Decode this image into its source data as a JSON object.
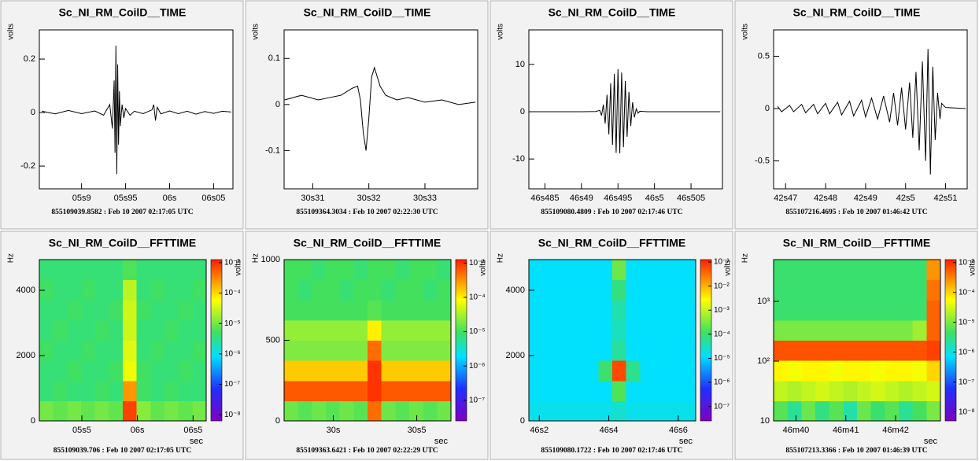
{
  "chart_data": [
    {
      "type": "line",
      "title": "Sc_NI_RM_CoilD__TIME",
      "ylabel": "volts",
      "footer": "855109039.8582 : Feb 10 2007 02:17:05 UTC",
      "color": "#000000",
      "x": [
        5.855,
        5.87,
        5.885,
        5.9,
        5.915,
        5.925,
        5.932,
        5.935,
        5.937,
        5.938,
        5.939,
        5.94,
        5.941,
        5.942,
        5.943,
        5.944,
        5.946,
        5.948,
        5.95,
        5.955,
        5.96,
        5.97,
        5.98,
        5.982,
        5.984,
        5.986,
        5.99,
        6.0,
        6.01,
        6.02,
        6.03,
        6.04,
        6.05,
        6.06,
        6.07
      ],
      "values": [
        0.005,
        -0.005,
        0.008,
        -0.004,
        0.006,
        -0.01,
        0.03,
        -0.06,
        0.12,
        -0.15,
        0.25,
        -0.23,
        0.18,
        -0.12,
        0.08,
        -0.05,
        0.03,
        -0.02,
        0.015,
        -0.01,
        0.005,
        -0.004,
        0.01,
        0.03,
        -0.03,
        0.02,
        -0.005,
        0.006,
        -0.004,
        0.005,
        -0.006,
        0.004,
        -0.003,
        0.005,
        0.002
      ],
      "xlim": [
        5.852,
        6.072
      ],
      "xticks": [
        {
          "value": 5.9,
          "label": "05s9"
        },
        {
          "value": 5.95,
          "label": "05s95"
        },
        {
          "value": 6.0,
          "label": "06s"
        },
        {
          "value": 6.05,
          "label": "06s05"
        }
      ],
      "ylim": [
        -0.285,
        0.309
      ],
      "yticks": [
        -0.2,
        0,
        0.2
      ]
    },
    {
      "type": "line",
      "title": "Sc_NI_RM_CoilD__TIME",
      "ylabel": "volts",
      "footer": "855109364.3034 : Feb 10 2007 02:22:30 UTC",
      "color": "#000000",
      "x": [
        30.305,
        30.308,
        30.311,
        30.313,
        30.315,
        30.317,
        30.318,
        30.3185,
        30.319,
        30.3195,
        30.32,
        30.3205,
        30.321,
        30.3215,
        30.322,
        30.323,
        30.325,
        30.327,
        30.33,
        30.333,
        30.336,
        30.339
      ],
      "values": [
        0.01,
        0.02,
        0.01,
        0.015,
        0.02,
        0.035,
        0.04,
        0.01,
        -0.06,
        -0.1,
        -0.03,
        0.06,
        0.08,
        0.06,
        0.04,
        0.02,
        0.01,
        0.015,
        0.005,
        0.01,
        0.0,
        0.005
      ],
      "xlim": [
        30.3049,
        30.3394
      ],
      "xticks": [
        {
          "value": 30.31,
          "label": "30s31"
        },
        {
          "value": 30.32,
          "label": "30s32"
        },
        {
          "value": 30.33,
          "label": "30s33"
        }
      ],
      "ylim": [
        -0.183,
        0.162
      ],
      "yticks": [
        -0.1,
        0,
        0.1
      ]
    },
    {
      "type": "line",
      "title": "Sc_NI_RM_CoilD__TIME",
      "ylabel": "volts",
      "footer": "855109080.4809 : Feb 10 2007 02:17:46 UTC",
      "color": "#000000",
      "x": [
        46.483,
        46.49,
        46.492,
        46.4925,
        46.49275,
        46.493,
        46.49325,
        46.4935,
        46.49375,
        46.494,
        46.49425,
        46.4945,
        46.49475,
        46.495,
        46.49525,
        46.4955,
        46.49575,
        46.496,
        46.49625,
        46.4965,
        46.49675,
        46.497,
        46.49725,
        46.4975,
        46.49775,
        46.498,
        46.499,
        46.509
      ],
      "values": [
        0,
        0,
        0.05,
        0.3,
        -0.8,
        1.5,
        -2.5,
        3.6,
        -4.8,
        6,
        -7,
        8,
        -8.7,
        9,
        -8.8,
        8.3,
        -7.5,
        6.5,
        -5.3,
        4.2,
        -3,
        2,
        -1.2,
        0.6,
        -0.3,
        0.1,
        0,
        0
      ],
      "xlim": [
        46.4828,
        46.5093
      ],
      "xticks": [
        {
          "value": 46.485,
          "label": "46s485"
        },
        {
          "value": 46.49,
          "label": "46s49"
        },
        {
          "value": 46.495,
          "label": "46s495"
        },
        {
          "value": 46.5,
          "label": "46s5"
        },
        {
          "value": 46.505,
          "label": "46s505"
        }
      ],
      "ylim": [
        -16.3,
        17.3
      ],
      "yticks": [
        -10,
        0,
        10
      ]
    },
    {
      "type": "line",
      "title": "Sc_NI_RM_CoilD__TIME",
      "ylabel": "volts",
      "footer": "855107216.4695 : Feb 10 2007 01:46:42 UTC",
      "color": "#000000",
      "x": [
        42.468,
        42.469,
        42.471,
        42.472,
        42.474,
        42.475,
        42.477,
        42.478,
        42.48,
        42.481,
        42.483,
        42.484,
        42.486,
        42.487,
        42.489,
        42.49,
        42.4915,
        42.493,
        42.4945,
        42.496,
        42.497,
        42.498,
        42.499,
        42.5,
        42.501,
        42.5018,
        42.5026,
        42.5034,
        42.5042,
        42.505,
        42.5056,
        42.5062,
        42.5068,
        42.5074,
        42.508,
        42.5086,
        42.509,
        42.51,
        42.515
      ],
      "values": [
        0.02,
        -0.03,
        0.03,
        -0.03,
        0.04,
        -0.04,
        0.04,
        -0.05,
        0.05,
        -0.05,
        0.06,
        -0.06,
        0.07,
        -0.07,
        0.08,
        -0.08,
        0.1,
        -0.1,
        0.12,
        -0.13,
        0.15,
        -0.16,
        0.2,
        -0.2,
        0.25,
        -0.28,
        0.35,
        -0.4,
        0.45,
        -0.5,
        0.57,
        -0.63,
        0.4,
        -0.3,
        0.15,
        -0.1,
        0.05,
        0.01,
        0
      ],
      "xlim": [
        42.467,
        42.5154
      ],
      "xticks": [
        {
          "value": 42.47,
          "label": "42s47"
        },
        {
          "value": 42.48,
          "label": "42s48"
        },
        {
          "value": 42.49,
          "label": "42s49"
        },
        {
          "value": 42.5,
          "label": "42s5"
        },
        {
          "value": 42.51,
          "label": "42s51"
        }
      ],
      "ylim": [
        -0.767,
        0.752
      ],
      "yticks": [
        -0.5,
        0,
        0.5
      ]
    },
    {
      "type": "heatmap",
      "title": "Sc_NI_RM_CoilD__FFTTIME",
      "ylabel": "Hz",
      "xlabel": "sec",
      "zlabel": "volts",
      "footer": "855109039.706 : Feb 10 2007 02:17:05 UTC",
      "xlim": [
        5.118,
        6.618
      ],
      "xticks": [
        {
          "value": 5.5,
          "label": "05s5"
        },
        {
          "value": 6.0,
          "label": "06s"
        },
        {
          "value": 6.5,
          "label": "06s5"
        }
      ],
      "ylim": [
        0,
        4940
      ],
      "yticks": [
        0,
        2000,
        4000
      ],
      "zlim": [
        -8.2,
        -2.9
      ],
      "zticks": [
        {
          "value": -3,
          "label": "10⁻³"
        },
        {
          "value": -4,
          "label": "10⁻⁴"
        },
        {
          "value": -5,
          "label": "10⁻⁵"
        },
        {
          "value": -6,
          "label": "10⁻⁶"
        },
        {
          "value": -7,
          "label": "10⁻⁷"
        },
        {
          "value": -8,
          "label": "10⁻⁸"
        }
      ],
      "z": [
        [
          -5.0,
          -5.1,
          -5.0,
          -5.1,
          -5.0,
          -5.1,
          -3.1,
          -4.9,
          -5.1,
          -5.0,
          -5.1,
          -5.0
        ],
        [
          -5.4,
          -5.3,
          -5.4,
          -5.4,
          -5.3,
          -5.4,
          -3.6,
          -5.3,
          -5.4,
          -5.3,
          -5.4,
          -5.4
        ],
        [
          -5.4,
          -5.4,
          -5.3,
          -5.4,
          -5.4,
          -5.3,
          -4.3,
          -5.3,
          -5.4,
          -5.4,
          -5.3,
          -5.4
        ],
        [
          -5.3,
          -5.4,
          -5.4,
          -5.3,
          -5.4,
          -5.4,
          -4.4,
          -5.4,
          -5.3,
          -5.4,
          -5.4,
          -5.3
        ],
        [
          -5.4,
          -5.3,
          -5.4,
          -5.4,
          -5.3,
          -5.4,
          -4.5,
          -5.4,
          -5.4,
          -5.3,
          -5.4,
          -5.4
        ],
        [
          -5.4,
          -5.4,
          -5.3,
          -5.4,
          -5.4,
          -5.3,
          -4.5,
          -5.3,
          -5.4,
          -5.4,
          -5.3,
          -5.4
        ],
        [
          -5.3,
          -5.4,
          -5.4,
          -5.3,
          -5.4,
          -5.4,
          -4.6,
          -5.4,
          -5.3,
          -5.4,
          -5.4,
          -5.3
        ],
        [
          -5.4,
          -5.4,
          -5.4,
          -5.4,
          -5.4,
          -5.4,
          -5.2,
          -5.4,
          -5.4,
          -5.4,
          -5.4,
          -5.4
        ]
      ]
    },
    {
      "type": "heatmap",
      "title": "Sc_NI_RM_CoilD__FFTTIME",
      "ylabel": "Hz",
      "xlabel": "sec",
      "zlabel": "volts",
      "footer": "855109363.6421 : Feb 10 2007 02:22:29 UTC",
      "xlim": [
        29.705,
        30.705
      ],
      "xticks": [
        {
          "value": 30,
          "label": "30s"
        },
        {
          "value": 30.5,
          "label": "30s5"
        }
      ],
      "ylim": [
        0,
        1000
      ],
      "yticks": [
        0,
        500,
        1000
      ],
      "zlim": [
        -7.6,
        -2.9
      ],
      "zticks": [
        {
          "value": -3,
          "label": "10⁻³"
        },
        {
          "value": -4,
          "label": "10⁻⁴"
        },
        {
          "value": -5,
          "label": "10⁻⁵"
        },
        {
          "value": -6,
          "label": "10⁻⁶"
        },
        {
          "value": -7,
          "label": "10⁻⁷"
        }
      ],
      "z": [
        [
          -4.8,
          -4.9,
          -4.8,
          -4.9,
          -4.8,
          -4.9,
          -3.3,
          -4.8,
          -4.9,
          -4.8,
          -4.9,
          -4.8
        ],
        [
          -3.2,
          -3.2,
          -3.2,
          -3.2,
          -3.2,
          -3.2,
          -3.0,
          -3.2,
          -3.2,
          -3.2,
          -3.2,
          -3.2
        ],
        [
          -3.8,
          -3.8,
          -3.8,
          -3.8,
          -3.8,
          -3.8,
          -3.0,
          -3.8,
          -3.8,
          -3.8,
          -3.8,
          -3.8
        ],
        [
          -4.7,
          -4.7,
          -4.7,
          -4.7,
          -4.7,
          -4.7,
          -3.3,
          -4.7,
          -4.7,
          -4.7,
          -4.7,
          -4.7
        ],
        [
          -4.6,
          -4.6,
          -4.6,
          -4.6,
          -4.6,
          -4.6,
          -4.0,
          -4.6,
          -4.6,
          -4.6,
          -4.6,
          -4.6
        ],
        [
          -5.0,
          -5.0,
          -5.0,
          -5.0,
          -5.0,
          -5.0,
          -4.9,
          -5.0,
          -5.0,
          -5.0,
          -5.0,
          -5.0
        ],
        [
          -5.0,
          -5.1,
          -5.0,
          -5.0,
          -5.1,
          -5.0,
          -5.0,
          -5.1,
          -5.0,
          -5.0,
          -5.1,
          -5.0
        ],
        [
          -5.0,
          -5.0,
          -5.1,
          -5.0,
          -5.0,
          -5.1,
          -5.0,
          -5.0,
          -5.1,
          -5.0,
          -5.0,
          -5.1
        ]
      ]
    },
    {
      "type": "heatmap",
      "title": "Sc_NI_RM_CoilD__FFTTIME",
      "ylabel": "Hz",
      "xlabel": "sec",
      "zlabel": "volts",
      "footer": "855109080.1722 : Feb 10 2007 02:17:46 UTC",
      "xlim": [
        46.17,
        46.65
      ],
      "xticks": [
        {
          "value": 46.2,
          "label": "46s2"
        },
        {
          "value": 46.4,
          "label": "46s4"
        },
        {
          "value": 46.6,
          "label": "46s6"
        }
      ],
      "ylim": [
        0,
        4940
      ],
      "yticks": [
        0,
        2000,
        4000
      ],
      "zlim": [
        -7.6,
        -0.9
      ],
      "zticks": [
        {
          "value": -1,
          "label": "10⁻¹"
        },
        {
          "value": -2,
          "label": "10⁻²"
        },
        {
          "value": -3,
          "label": "10⁻³"
        },
        {
          "value": -4,
          "label": "10⁻⁴"
        },
        {
          "value": -5,
          "label": "10⁻⁵"
        },
        {
          "value": -6,
          "label": "10⁻⁶"
        },
        {
          "value": -7,
          "label": "10⁻⁷"
        }
      ],
      "z": [
        [
          -4.8,
          -4.8,
          -4.8,
          -4.8,
          -4.8,
          -4.8,
          -4.6,
          -4.8,
          -4.8,
          -4.8,
          -4.8,
          -4.8
        ],
        [
          -4.9,
          -4.9,
          -4.9,
          -4.9,
          -4.9,
          -4.9,
          -3.8,
          -4.9,
          -4.9,
          -4.9,
          -4.9,
          -4.9
        ],
        [
          -4.9,
          -4.9,
          -4.9,
          -4.9,
          -4.9,
          -4.0,
          -1.2,
          -4.2,
          -4.9,
          -4.9,
          -4.9,
          -4.9
        ],
        [
          -4.9,
          -4.9,
          -4.9,
          -4.9,
          -4.9,
          -4.9,
          -4.3,
          -4.9,
          -4.9,
          -4.9,
          -4.9,
          -4.9
        ],
        [
          -4.9,
          -4.9,
          -4.9,
          -4.9,
          -4.9,
          -4.9,
          -4.5,
          -4.9,
          -4.9,
          -4.9,
          -4.9,
          -4.9
        ],
        [
          -4.9,
          -4.9,
          -4.9,
          -4.9,
          -4.9,
          -4.9,
          -4.4,
          -4.9,
          -4.9,
          -4.9,
          -4.9,
          -4.9
        ],
        [
          -4.9,
          -4.9,
          -4.9,
          -4.9,
          -4.9,
          -4.9,
          -4.1,
          -4.9,
          -4.9,
          -4.9,
          -4.9,
          -4.9
        ],
        [
          -4.9,
          -4.9,
          -4.9,
          -4.9,
          -4.9,
          -4.9,
          -3.6,
          -4.9,
          -4.9,
          -4.9,
          -4.9,
          -4.9
        ]
      ]
    },
    {
      "type": "heatmap",
      "title": "Sc_NI_RM_CoilD__FFTTIME",
      "ylabel": "Hz",
      "xlabel": "sec",
      "zlabel": "volts",
      "footer": "855107213.3366 : Feb 10 2007 01:46:39 UTC",
      "xlim": [
        39.55,
        42.9
      ],
      "xticks": [
        {
          "value": 40,
          "label": "46m40"
        },
        {
          "value": 41,
          "label": "46m41"
        },
        {
          "value": 42,
          "label": "46m42"
        }
      ],
      "ylim": [
        10,
        5000
      ],
      "log_y": true,
      "yticks": [
        10,
        {
          "value": 100,
          "label": "10²"
        },
        {
          "value": 1000,
          "label": "10³"
        }
      ],
      "zlim": [
        -8.3,
        -2.9
      ],
      "zticks": [
        {
          "value": -3,
          "label": "10⁻³"
        },
        {
          "value": -4,
          "label": "10⁻⁴"
        },
        {
          "value": -5,
          "label": "10⁻⁵"
        },
        {
          "value": -6,
          "label": "10⁻⁶"
        },
        {
          "value": -7,
          "label": "10⁻⁷"
        },
        {
          "value": -8,
          "label": "10⁻⁸"
        }
      ],
      "z": [
        [
          -5.2,
          -5.6,
          -5.1,
          -5.5,
          -5.2,
          -5.7,
          -5.1,
          -5.4,
          -5.2,
          -5.6,
          -5.3,
          -5.0
        ],
        [
          -4.6,
          -4.7,
          -4.6,
          -4.5,
          -4.6,
          -4.7,
          -4.6,
          -4.5,
          -4.6,
          -4.7,
          -4.6,
          -4.5
        ],
        [
          -4.2,
          -4.3,
          -4.2,
          -4.2,
          -4.3,
          -4.2,
          -4.2,
          -4.3,
          -4.2,
          -4.2,
          -4.3,
          -4.0
        ],
        [
          -3.2,
          -3.2,
          -3.2,
          -3.2,
          -3.2,
          -3.2,
          -3.2,
          -3.2,
          -3.2,
          -3.2,
          -3.2,
          -3.1
        ],
        [
          -5.0,
          -5.0,
          -5.0,
          -5.0,
          -5.0,
          -5.0,
          -5.0,
          -5.0,
          -5.0,
          -5.0,
          -4.8,
          -3.3
        ],
        [
          -5.4,
          -5.4,
          -5.4,
          -5.4,
          -5.4,
          -5.4,
          -5.4,
          -5.4,
          -5.4,
          -5.4,
          -5.4,
          -3.3
        ],
        [
          -5.4,
          -5.4,
          -5.4,
          -5.4,
          -5.4,
          -5.4,
          -5.4,
          -5.4,
          -5.4,
          -5.4,
          -5.4,
          -3.4
        ],
        [
          -5.4,
          -5.4,
          -5.4,
          -5.4,
          -5.4,
          -5.4,
          -5.4,
          -5.4,
          -5.4,
          -5.4,
          -5.4,
          -3.6
        ]
      ]
    }
  ]
}
